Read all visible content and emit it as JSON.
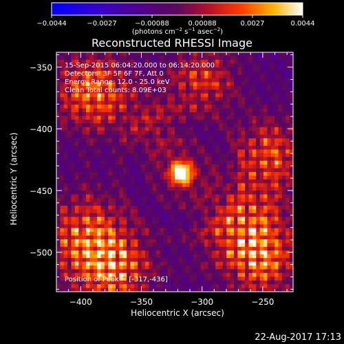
{
  "colorbar": {
    "ticks": [
      "−0.0044",
      "−0.0027",
      "−0.00088",
      "0.00088",
      "0.0027",
      "0.0044"
    ],
    "units_prefix": "(photons cm",
    "units_sup1": "−2",
    "units_mid1": " s",
    "units_sup2": "−1",
    "units_mid2": " asec",
    "units_sup3": "−2",
    "units_suffix": ")"
  },
  "chart_data": {
    "type": "heatmap",
    "title": "Reconstructed RHESSI Image",
    "xlabel": "Heliocentric X (arcsec)",
    "ylabel": "Heliocentric Y (arcsec)",
    "xlim": [
      -420,
      -225
    ],
    "ylim": [
      -532,
      -338
    ],
    "xticks": [
      -400,
      -350,
      -300,
      -250
    ],
    "yticks": [
      -350,
      -400,
      -450,
      -500
    ],
    "xtick_labels": [
      "−400",
      "−350",
      "−300",
      "−250"
    ],
    "ytick_labels": [
      "−350",
      "−400",
      "−450",
      "−500"
    ],
    "color_range": [
      -0.0044,
      0.0044
    ],
    "colormap": "blue-purple-red-yellow-white",
    "peak": {
      "x": -317,
      "y": -436
    },
    "annotations": {
      "time": "15-Sep-2015 06:04:20.000 to 06:14:20.000",
      "detectors": "Detectors: 3F 5F 6F 7F, Att 0",
      "energy": "Energy Range: 12.0 - 25.0 keV",
      "clean": "Clean     Total counts: 8.09E+03",
      "peak_text": "Position of Peak = [-317,-436]"
    }
  },
  "footer": {
    "date": "22-Aug-2017 17:13"
  }
}
